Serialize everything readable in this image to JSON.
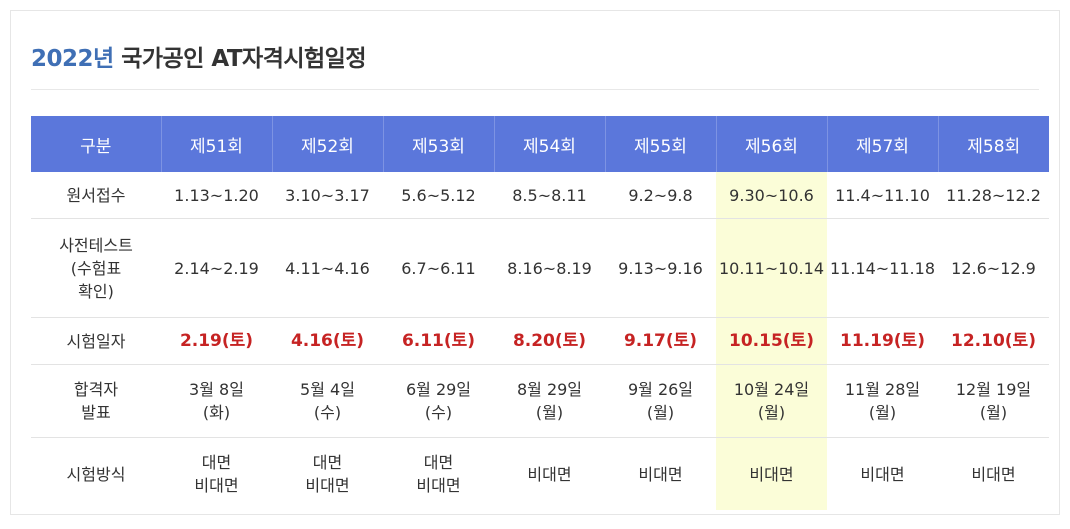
{
  "title": {
    "year": "2022년",
    "rest": " 국가공인 AT자격시험일정"
  },
  "headers": [
    "구분",
    "제51회",
    "제52회",
    "제53회",
    "제54회",
    "제55회",
    "제56회",
    "제57회",
    "제58회"
  ],
  "rows": [
    {
      "label": [
        "원서접수"
      ],
      "cells": [
        [
          "1.13~1.20"
        ],
        [
          "3.10~3.17"
        ],
        [
          "5.6~5.12"
        ],
        [
          "8.5~8.11"
        ],
        [
          "9.2~9.8"
        ],
        [
          "9.30~10.6"
        ],
        [
          "11.4~11.10"
        ],
        [
          "11.28~12.2"
        ]
      ]
    },
    {
      "label": [
        "사전테스트",
        "(수험표",
        "확인)"
      ],
      "cells": [
        [
          "2.14~2.19"
        ],
        [
          "4.11~4.16"
        ],
        [
          "6.7~6.11"
        ],
        [
          "8.16~8.19"
        ],
        [
          "9.13~9.16"
        ],
        [
          "10.11~10.14"
        ],
        [
          "11.14~11.18"
        ],
        [
          "12.6~12.9"
        ]
      ]
    },
    {
      "label": [
        "시험일자"
      ],
      "cells": [
        [
          "2.19(토)"
        ],
        [
          "4.16(토)"
        ],
        [
          "6.11(토)"
        ],
        [
          "8.20(토)"
        ],
        [
          "9.17(토)"
        ],
        [
          "10.15(토)"
        ],
        [
          "11.19(토)"
        ],
        [
          "12.10(토)"
        ]
      ]
    },
    {
      "label": [
        "합격자",
        "발표"
      ],
      "cells": [
        [
          "3월 8일",
          "(화)"
        ],
        [
          "5월 4일",
          "(수)"
        ],
        [
          "6월 29일",
          "(수)"
        ],
        [
          "8월 29일",
          "(월)"
        ],
        [
          "9월 26일",
          "(월)"
        ],
        [
          "10월 24일",
          "(월)"
        ],
        [
          "11월 28일",
          "(월)"
        ],
        [
          "12월 19일",
          "(월)"
        ]
      ]
    },
    {
      "label": [
        "시험방식"
      ],
      "cells": [
        [
          "대면",
          "비대면"
        ],
        [
          "대면",
          "비대면"
        ],
        [
          "대면",
          "비대면"
        ],
        [
          "비대면"
        ],
        [
          "비대면"
        ],
        [
          "비대면"
        ],
        [
          "비대면"
        ],
        [
          "비대면"
        ]
      ]
    }
  ],
  "highlight_column": "제56회",
  "colors": {
    "header_bg": "#5b77db",
    "highlight_bg": "#fbfdd8",
    "exam_date": "#c62323",
    "year": "#3f6fb5"
  }
}
